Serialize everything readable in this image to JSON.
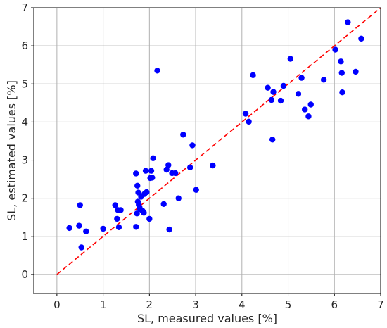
{
  "chart_data": {
    "type": "scatter",
    "xlabel": "SL, measured values [%]",
    "ylabel": "SL, estimated values [%]",
    "xlim": [
      -0.5,
      7
    ],
    "ylim": [
      -0.5,
      7
    ],
    "xticks": [
      0,
      1,
      2,
      3,
      4,
      5,
      6,
      7
    ],
    "yticks": [
      0,
      1,
      2,
      3,
      4,
      5,
      6,
      7
    ],
    "grid": true,
    "point_color": "#0000ff",
    "reference_line": {
      "style": "dashed",
      "color": "#ff0000",
      "from": [
        0,
        0
      ],
      "to": [
        7,
        7
      ]
    },
    "points": [
      [
        0.27,
        1.22
      ],
      [
        0.48,
        1.28
      ],
      [
        0.5,
        1.82
      ],
      [
        0.53,
        0.71
      ],
      [
        0.63,
        1.13
      ],
      [
        1.0,
        1.2
      ],
      [
        1.26,
        1.82
      ],
      [
        1.3,
        1.46
      ],
      [
        1.32,
        1.69
      ],
      [
        1.34,
        1.24
      ],
      [
        1.38,
        1.69
      ],
      [
        1.71,
        2.65
      ],
      [
        1.71,
        1.25
      ],
      [
        1.73,
        1.6
      ],
      [
        1.74,
        2.33
      ],
      [
        1.75,
        1.91
      ],
      [
        1.76,
        2.15
      ],
      [
        1.77,
        1.83
      ],
      [
        1.79,
        1.75
      ],
      [
        1.8,
        1.71
      ],
      [
        1.82,
        2.04
      ],
      [
        1.85,
        1.67
      ],
      [
        1.88,
        1.62
      ],
      [
        1.89,
        2.11
      ],
      [
        1.92,
        2.72
      ],
      [
        1.94,
        2.16
      ],
      [
        2.0,
        1.46
      ],
      [
        2.02,
        2.53
      ],
      [
        2.04,
        2.72
      ],
      [
        2.06,
        2.54
      ],
      [
        2.08,
        3.05
      ],
      [
        2.17,
        5.35
      ],
      [
        2.31,
        1.85
      ],
      [
        2.37,
        2.75
      ],
      [
        2.41,
        2.87
      ],
      [
        2.43,
        1.18
      ],
      [
        2.49,
        2.66
      ],
      [
        2.56,
        2.66
      ],
      [
        2.63,
        2.0
      ],
      [
        2.73,
        3.67
      ],
      [
        2.88,
        2.81
      ],
      [
        2.93,
        3.39
      ],
      [
        3.01,
        2.22
      ],
      [
        3.37,
        2.86
      ],
      [
        4.08,
        4.22
      ],
      [
        4.15,
        4.01
      ],
      [
        4.24,
        5.23
      ],
      [
        4.56,
        4.9
      ],
      [
        4.64,
        4.58
      ],
      [
        4.66,
        3.54
      ],
      [
        4.68,
        4.79
      ],
      [
        4.84,
        4.56
      ],
      [
        4.9,
        4.95
      ],
      [
        5.05,
        5.66
      ],
      [
        5.22,
        4.74
      ],
      [
        5.29,
        5.16
      ],
      [
        5.36,
        4.33
      ],
      [
        5.44,
        4.15
      ],
      [
        5.49,
        4.46
      ],
      [
        5.77,
        5.11
      ],
      [
        6.02,
        5.9
      ],
      [
        6.14,
        5.59
      ],
      [
        6.16,
        5.29
      ],
      [
        6.17,
        4.78
      ],
      [
        6.29,
        6.62
      ],
      [
        6.46,
        5.32
      ],
      [
        6.58,
        6.19
      ]
    ]
  }
}
